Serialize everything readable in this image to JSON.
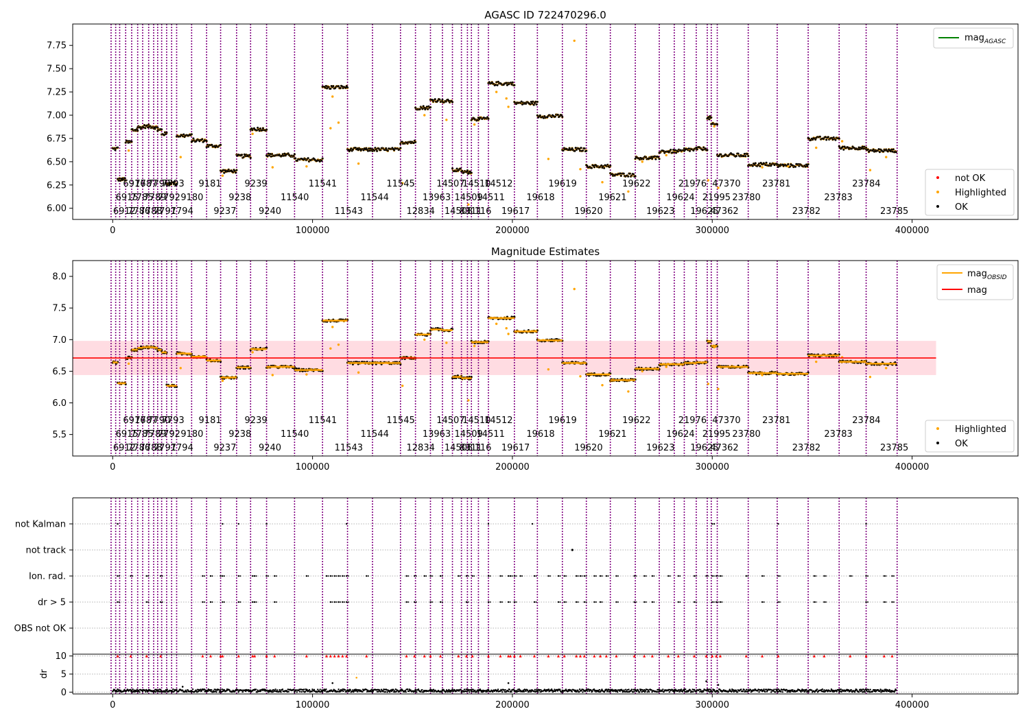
{
  "figure": {
    "background": "#ffffff"
  },
  "chart_data": [
    {
      "id": "agasc",
      "type": "scatter",
      "title": "AGASC ID 722470296.0",
      "xlim": [
        -20000,
        453000
      ],
      "ylim": [
        5.88,
        7.98
      ],
      "xticks": [
        0,
        100000,
        200000,
        300000,
        400000
      ],
      "xtick_labels": [
        "0",
        "100000",
        "200000",
        "300000",
        "400000"
      ],
      "yticks": [
        6.0,
        6.25,
        6.5,
        6.75,
        7.0,
        7.25,
        7.5,
        7.75
      ],
      "ytick_labels": [
        "6.00",
        "6.25",
        "6.50",
        "6.75",
        "7.00",
        "7.25",
        "7.50",
        "7.75"
      ],
      "legend_top": {
        "location": "upper right",
        "entries": [
          {
            "label": "mag",
            "sub": "AGASC",
            "color": "#008000",
            "kind": "line"
          }
        ]
      },
      "legend_bottom": {
        "location": "lower right",
        "entries": [
          {
            "label": "not OK",
            "color": "#ff0000"
          },
          {
            "label": "Highlighted",
            "color": "#ffa500"
          },
          {
            "label": "OK",
            "color": "#000000"
          }
        ]
      }
    },
    {
      "id": "estimates",
      "type": "scatter",
      "title": "Magnitude Estimates",
      "xlim": [
        -20000,
        453000
      ],
      "ylim": [
        5.16,
        8.25
      ],
      "xticks": [
        0,
        100000,
        200000,
        300000,
        400000
      ],
      "xtick_labels": [
        "0",
        "100000",
        "200000",
        "300000",
        "400000"
      ],
      "yticks": [
        5.5,
        6.0,
        6.5,
        7.0,
        7.5,
        8.0
      ],
      "ytick_labels": [
        "5.5",
        "6.0",
        "6.5",
        "7.0",
        "7.5",
        "8.0"
      ],
      "mag": 6.71,
      "mag_band": [
        6.44,
        6.98
      ],
      "band_x": [
        -20000,
        412000
      ],
      "legend_top": {
        "location": "upper right",
        "entries": [
          {
            "label": "mag",
            "sub": "OBSID",
            "color": "#ffa500",
            "kind": "line"
          },
          {
            "label": "mag",
            "sub": "",
            "color": "#ff0000",
            "kind": "line"
          }
        ]
      },
      "legend_bottom": {
        "location": "lower right",
        "entries": [
          {
            "label": "Highlighted",
            "color": "#ffa500"
          },
          {
            "label": "OK",
            "color": "#000000"
          }
        ]
      }
    },
    {
      "id": "flags",
      "type": "scatter",
      "xlim": [
        -20000,
        453000
      ],
      "xticks": [
        0,
        100000,
        200000,
        300000,
        400000
      ],
      "xtick_labels": [
        "0",
        "100000",
        "200000",
        "300000",
        "400000"
      ],
      "flag_labels": [
        "not Kalman",
        "not track",
        "Ion. rad.",
        "dr > 5",
        "OBS not OK"
      ],
      "flag_points": {
        "not Kalman": [
          2500,
          55000,
          63000,
          77000,
          117000,
          188000,
          210000,
          300000,
          301000,
          333000,
          377000
        ],
        "not track": [
          230000
        ],
        "Ion. rad.": [
          2500,
          9000,
          17000,
          24000,
          45000,
          49000,
          54000,
          55000,
          63000,
          70000,
          71000,
          77000,
          81000,
          97000,
          107000,
          109000,
          111000,
          113000,
          115000,
          117000,
          127000,
          147000,
          151000,
          156000,
          159000,
          164000,
          173000,
          177000,
          180000,
          188000,
          194000,
          198000,
          199000,
          201000,
          204000,
          211000,
          218000,
          223000,
          226000,
          232000,
          234000,
          236000,
          241000,
          244000,
          247000,
          252000,
          261000,
          266000,
          270000,
          278000,
          283000,
          291000,
          297000,
          300000,
          302000,
          304000,
          317000,
          325000,
          333000,
          351000,
          356000,
          369000,
          377000,
          386000,
          390000
        ],
        "dr > 5": [
          2500,
          17000,
          24000,
          45000,
          49000,
          55000,
          63000,
          70000,
          71000,
          81000,
          109000,
          111000,
          113000,
          115000,
          117000,
          147000,
          151000,
          159000,
          164000,
          177000,
          188000,
          194000,
          198000,
          201000,
          211000,
          223000,
          226000,
          232000,
          236000,
          241000,
          244000,
          252000,
          261000,
          266000,
          270000,
          283000,
          291000,
          300000,
          302000,
          304000,
          325000,
          333000,
          351000,
          356000,
          377000,
          386000,
          390000
        ]
      },
      "dr_ylim": [
        -0.5,
        10.5
      ],
      "dr_yticks": [
        0,
        5,
        10
      ],
      "dr_ytick_labels": [
        "0",
        "5",
        "10"
      ],
      "dr_ylabel": "dr",
      "dr_threshold": 10
    }
  ],
  "obs_boundaries": [
    -800,
    1500,
    3500,
    6500,
    9500,
    12500,
    15000,
    18000,
    20500,
    22500,
    24500,
    27000,
    29500,
    32000,
    39500,
    47000,
    54000,
    62000,
    69000,
    77000,
    91000,
    105000,
    117500,
    130000,
    144000,
    151500,
    159000,
    165000,
    170000,
    174500,
    177500,
    179500,
    183000,
    188000,
    201000,
    212500,
    225000,
    237000,
    249000,
    261500,
    273500,
    281000,
    286000,
    292000,
    297500,
    299500,
    302500,
    318000,
    332500,
    348000,
    363500,
    377000,
    392500
  ],
  "obsid_labels": [
    {
      "text": "6916",
      "x": 5200,
      "row": 0
    },
    {
      "text": "7787",
      "x": 11000,
      "row": 0
    },
    {
      "text": "7790",
      "x": 17500,
      "row": 0
    },
    {
      "text": "7793",
      "x": 24500,
      "row": 0
    },
    {
      "text": "9181",
      "x": 43000,
      "row": 0
    },
    {
      "text": "9239",
      "x": 66000,
      "row": 0
    },
    {
      "text": "11541",
      "x": 98000,
      "row": 0
    },
    {
      "text": "11545",
      "x": 137000,
      "row": 0
    },
    {
      "text": "14507",
      "x": 162000,
      "row": 0
    },
    {
      "text": "14510",
      "x": 175000,
      "row": 0
    },
    {
      "text": "14512",
      "x": 186000,
      "row": 0
    },
    {
      "text": "19619",
      "x": 218000,
      "row": 0
    },
    {
      "text": "19622",
      "x": 255000,
      "row": 0
    },
    {
      "text": "21976",
      "x": 283000,
      "row": 0
    },
    {
      "text": "47370",
      "x": 300000,
      "row": 0
    },
    {
      "text": "23781",
      "x": 325000,
      "row": 0
    },
    {
      "text": "23784",
      "x": 370000,
      "row": 0
    },
    {
      "text": "6915",
      "x": 1500,
      "row": 1
    },
    {
      "text": "7785",
      "x": 9000,
      "row": 1
    },
    {
      "text": "7789",
      "x": 15500,
      "row": 1
    },
    {
      "text": "7792",
      "x": 22500,
      "row": 1
    },
    {
      "text": "9180",
      "x": 34000,
      "row": 1
    },
    {
      "text": "9238",
      "x": 58000,
      "row": 1
    },
    {
      "text": "11540",
      "x": 84000,
      "row": 1
    },
    {
      "text": "11544",
      "x": 124000,
      "row": 1
    },
    {
      "text": "13963",
      "x": 155000,
      "row": 1
    },
    {
      "text": "14509",
      "x": 171000,
      "row": 1
    },
    {
      "text": "14511",
      "x": 182000,
      "row": 1
    },
    {
      "text": "19618",
      "x": 207000,
      "row": 1
    },
    {
      "text": "19621",
      "x": 243000,
      "row": 1
    },
    {
      "text": "19624",
      "x": 277000,
      "row": 1
    },
    {
      "text": "21995",
      "x": 295000,
      "row": 1
    },
    {
      "text": "23780",
      "x": 310000,
      "row": 1
    },
    {
      "text": "23783",
      "x": 356000,
      "row": 1
    },
    {
      "text": "6912",
      "x": 200,
      "row": 2
    },
    {
      "text": "7786",
      "x": 7500,
      "row": 2
    },
    {
      "text": "7788",
      "x": 13500,
      "row": 2
    },
    {
      "text": "7791",
      "x": 20500,
      "row": 2
    },
    {
      "text": "7794",
      "x": 29000,
      "row": 2
    },
    {
      "text": "9237",
      "x": 50500,
      "row": 2
    },
    {
      "text": "9240",
      "x": 73000,
      "row": 2
    },
    {
      "text": "11543",
      "x": 111000,
      "row": 2
    },
    {
      "text": "12834",
      "x": 147000,
      "row": 2
    },
    {
      "text": "14508",
      "x": 166000,
      "row": 2
    },
    {
      "text": "8311",
      "x": 173500,
      "row": 2
    },
    {
      "text": "116",
      "x": 181000,
      "row": 2
    },
    {
      "text": "19617",
      "x": 194500,
      "row": 2
    },
    {
      "text": "19620",
      "x": 231000,
      "row": 2
    },
    {
      "text": "19623",
      "x": 267000,
      "row": 2
    },
    {
      "text": "19625",
      "x": 289000,
      "row": 2
    },
    {
      "text": "47362",
      "x": 299000,
      "row": 2
    },
    {
      "text": "23782",
      "x": 340000,
      "row": 2
    },
    {
      "text": "23785",
      "x": 384000,
      "row": 2
    }
  ],
  "segments": [
    {
      "x": [
        0,
        2500
      ],
      "mag": 6.64
    },
    {
      "x": [
        2500,
        6500
      ],
      "mag": 6.31
    },
    {
      "x": [
        6500,
        9500
      ],
      "mag": 6.71
    },
    {
      "x": [
        9500,
        12500
      ],
      "mag": 6.84
    },
    {
      "x": [
        12500,
        15000
      ],
      "mag": 6.87
    },
    {
      "x": [
        15000,
        18000
      ],
      "mag": 6.88
    },
    {
      "x": [
        18000,
        20500
      ],
      "mag": 6.88
    },
    {
      "x": [
        20500,
        22500
      ],
      "mag": 6.87
    },
    {
      "x": [
        22500,
        24500
      ],
      "mag": 6.84
    },
    {
      "x": [
        24500,
        27000
      ],
      "mag": 6.8
    },
    {
      "x": [
        27000,
        32000
      ],
      "mag": 6.27
    },
    {
      "x": [
        32000,
        39500
      ],
      "mag": 6.78
    },
    {
      "x": [
        39500,
        47000
      ],
      "mag": 6.73
    },
    {
      "x": [
        47000,
        54000
      ],
      "mag": 6.67
    },
    {
      "x": [
        54000,
        62000
      ],
      "mag": 6.4
    },
    {
      "x": [
        62000,
        69000
      ],
      "mag": 6.56
    },
    {
      "x": [
        69000,
        77000
      ],
      "mag": 6.85
    },
    {
      "x": [
        77000,
        91000
      ],
      "mag": 6.57
    },
    {
      "x": [
        91000,
        105000
      ],
      "mag": 6.52
    },
    {
      "x": [
        105000,
        117500
      ],
      "mag": 7.3
    },
    {
      "x": [
        117500,
        130000
      ],
      "mag": 6.63
    },
    {
      "x": [
        130000,
        144000
      ],
      "mag": 6.63
    },
    {
      "x": [
        144000,
        151500
      ],
      "mag": 6.71
    },
    {
      "x": [
        151500,
        159000
      ],
      "mag": 7.08
    },
    {
      "x": [
        159000,
        165000
      ],
      "mag": 7.16
    },
    {
      "x": [
        165000,
        170000
      ],
      "mag": 7.15
    },
    {
      "x": [
        170000,
        174500
      ],
      "mag": 6.41
    },
    {
      "x": [
        174500,
        177500
      ],
      "mag": 6.39
    },
    {
      "x": [
        177500,
        179500
      ],
      "mag": 6.39
    },
    {
      "x": [
        179500,
        183000
      ],
      "mag": 6.96
    },
    {
      "x": [
        183000,
        188000
      ],
      "mag": 6.96
    },
    {
      "x": [
        188000,
        201000
      ],
      "mag": 7.34
    },
    {
      "x": [
        201000,
        212500
      ],
      "mag": 7.13
    },
    {
      "x": [
        212500,
        225000
      ],
      "mag": 6.99
    },
    {
      "x": [
        225000,
        237000
      ],
      "mag": 6.63
    },
    {
      "x": [
        237000,
        249000
      ],
      "mag": 6.45
    },
    {
      "x": [
        249000,
        261500
      ],
      "mag": 6.36
    },
    {
      "x": [
        261500,
        273500
      ],
      "mag": 6.54
    },
    {
      "x": [
        273500,
        281000
      ],
      "mag": 6.61
    },
    {
      "x": [
        281000,
        286000
      ],
      "mag": 6.61
    },
    {
      "x": [
        286000,
        292000
      ],
      "mag": 6.63
    },
    {
      "x": [
        292000,
        297500
      ],
      "mag": 6.64
    },
    {
      "x": [
        297500,
        299500
      ],
      "mag": 6.97
    },
    {
      "x": [
        299500,
        302500
      ],
      "mag": 6.9
    },
    {
      "x": [
        302500,
        318000
      ],
      "mag": 6.57
    },
    {
      "x": [
        318000,
        332500
      ],
      "mag": 6.47
    },
    {
      "x": [
        332500,
        348000
      ],
      "mag": 6.46
    },
    {
      "x": [
        348000,
        363500
      ],
      "mag": 6.75
    },
    {
      "x": [
        363500,
        377000
      ],
      "mag": 6.65
    },
    {
      "x": [
        377000,
        392000
      ],
      "mag": 6.62
    }
  ],
  "highlighted_outliers": [
    {
      "x": 8000,
      "mag": 6.62
    },
    {
      "x": 34000,
      "mag": 6.55
    },
    {
      "x": 55000,
      "mag": 6.35
    },
    {
      "x": 70000,
      "mag": 6.8
    },
    {
      "x": 80000,
      "mag": 6.44
    },
    {
      "x": 97000,
      "mag": 6.45
    },
    {
      "x": 109000,
      "mag": 6.86
    },
    {
      "x": 113000,
      "mag": 6.92
    },
    {
      "x": 110000,
      "mag": 7.2
    },
    {
      "x": 123000,
      "mag": 6.48
    },
    {
      "x": 145000,
      "mag": 6.27
    },
    {
      "x": 156000,
      "mag": 7.0
    },
    {
      "x": 167000,
      "mag": 6.95
    },
    {
      "x": 178000,
      "mag": 6.04
    },
    {
      "x": 181000,
      "mag": 6.9
    },
    {
      "x": 192000,
      "mag": 7.25
    },
    {
      "x": 197000,
      "mag": 7.18
    },
    {
      "x": 198000,
      "mag": 7.09
    },
    {
      "x": 218000,
      "mag": 6.53
    },
    {
      "x": 231000,
      "mag": 7.8
    },
    {
      "x": 234000,
      "mag": 6.42
    },
    {
      "x": 245000,
      "mag": 6.28
    },
    {
      "x": 258000,
      "mag": 6.18
    },
    {
      "x": 265000,
      "mag": 6.5
    },
    {
      "x": 277000,
      "mag": 6.57
    },
    {
      "x": 298000,
      "mag": 6.3
    },
    {
      "x": 301000,
      "mag": 6.88
    },
    {
      "x": 303000,
      "mag": 6.22
    },
    {
      "x": 325000,
      "mag": 6.44
    },
    {
      "x": 338000,
      "mag": 6.45
    },
    {
      "x": 352000,
      "mag": 6.65
    },
    {
      "x": 365000,
      "mag": 6.72
    },
    {
      "x": 379000,
      "mag": 6.41
    },
    {
      "x": 387000,
      "mag": 6.55
    }
  ],
  "dr_outliers": [
    {
      "x": 122000,
      "dr": 4
    },
    {
      "x": 110000,
      "dr": 2.5
    },
    {
      "x": 297000,
      "dr": 3
    },
    {
      "x": 303000,
      "dr": 2
    },
    {
      "x": 198000,
      "dr": 2.5
    },
    {
      "x": 35000,
      "dr": 1.5
    }
  ],
  "colors": {
    "ok": "#000000",
    "highlighted": "#ffa500",
    "not_ok": "#ff0000",
    "boundary": "#800080",
    "mag_line": "#ff0000",
    "band": "#ffc0cb",
    "agasc_line": "#008000"
  }
}
